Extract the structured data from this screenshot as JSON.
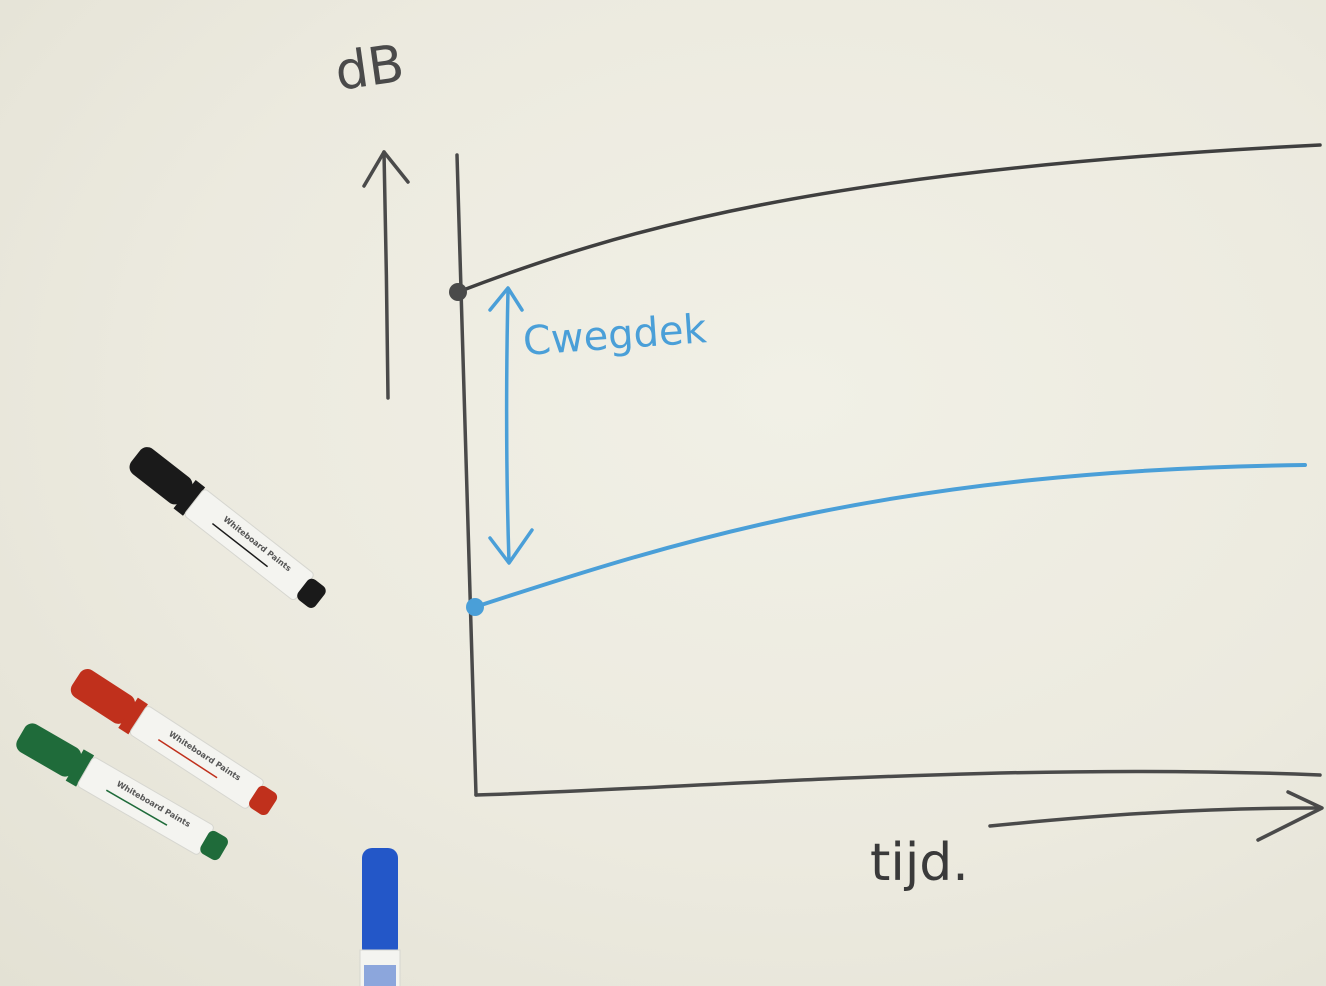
{
  "diagram": {
    "y_axis_label": "dB",
    "x_axis_label": "tijd.",
    "gap_label": "Cwegdek"
  },
  "markers": [
    {
      "color_name": "black",
      "cap": "#1a1a1a",
      "text": "Whiteboard Paints"
    },
    {
      "color_name": "red",
      "cap": "#c0301c",
      "text": "Whiteboard Paints"
    },
    {
      "color_name": "green",
      "cap": "#1f6b3a",
      "text": "Whiteboard Paints"
    },
    {
      "color_name": "blue",
      "cap": "#2357c8",
      "text": ""
    }
  ],
  "colors": {
    "ink_black": "#3f3f3f",
    "ink_blue": "#4a9fd8",
    "board": "#ecebe0"
  }
}
